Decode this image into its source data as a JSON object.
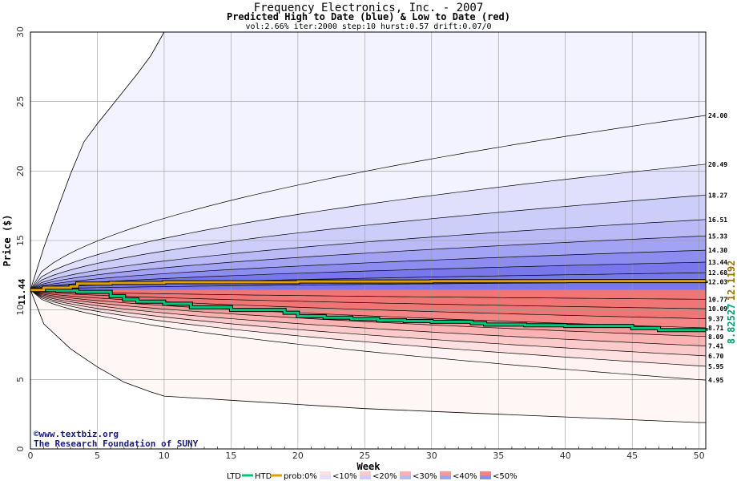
{
  "chart_data": {
    "type": "area",
    "title": "Frequency Electronics, Inc. - 2007",
    "subtitle": "Predicted High to Date (blue) &  Low to Date (red)",
    "params": "vol:2.66% iter:2000 step:10 hurst:0.57 drift:0.07/0",
    "xlabel": "Week",
    "ylabel": "Price ($)",
    "xlim": [
      0,
      50.5
    ],
    "ylim": [
      0,
      30
    ],
    "xticks": [
      0,
      5,
      10,
      15,
      20,
      25,
      30,
      35,
      40,
      45,
      50
    ],
    "yticks": [
      0,
      5,
      10,
      15,
      20,
      25,
      30
    ],
    "grid": true,
    "start_value": 11.44,
    "start_label": "11.44",
    "high_bands_end": [
      24.0,
      20.49,
      18.27,
      16.51,
      15.33,
      14.3,
      13.44,
      12.68,
      12.03
    ],
    "low_bands_end": [
      10.77,
      10.09,
      9.37,
      8.71,
      8.09,
      7.41,
      6.7,
      5.95,
      4.95
    ],
    "end_labels": [
      "24.00",
      "20.49",
      "18.27",
      "16.51",
      "15.33",
      "14.30",
      "13.44",
      "12.68",
      "12.03",
      "10.77",
      "10.09",
      "9.37",
      "8.71",
      "8.09",
      "7.41",
      "6.70",
      "5.95",
      "4.95"
    ],
    "outer_high": [
      [
        0,
        11.44
      ],
      [
        1,
        14.5
      ],
      [
        2,
        17.2
      ],
      [
        3,
        19.8
      ],
      [
        4,
        22.1
      ],
      [
        5,
        23.4
      ],
      [
        6,
        24.6
      ],
      [
        7,
        25.8
      ],
      [
        8,
        27.0
      ],
      [
        9,
        28.3
      ],
      [
        10,
        30.0
      ]
    ],
    "outer_low": [
      [
        0,
        11.44
      ],
      [
        1,
        9.0
      ],
      [
        3,
        7.2
      ],
      [
        5,
        5.9
      ],
      [
        7,
        4.8
      ],
      [
        9,
        4.1
      ],
      [
        10,
        3.8
      ],
      [
        15,
        3.5
      ],
      [
        20,
        3.2
      ],
      [
        25,
        2.9
      ],
      [
        30,
        2.7
      ],
      [
        35,
        2.5
      ],
      [
        40,
        2.3
      ],
      [
        45,
        2.1
      ],
      [
        50,
        1.9
      ],
      [
        50.5,
        1.9
      ]
    ],
    "series": [
      {
        "name": "LTD",
        "color": "#00c87a",
        "points": [
          [
            0,
            11.44
          ],
          [
            2,
            11.4
          ],
          [
            3.5,
            11.3
          ],
          [
            6,
            11.0
          ],
          [
            7,
            10.75
          ],
          [
            8,
            10.6
          ],
          [
            10,
            10.45
          ],
          [
            12,
            10.2
          ],
          [
            15,
            10.0
          ],
          [
            19,
            9.8
          ],
          [
            20,
            9.55
          ],
          [
            22,
            9.45
          ],
          [
            24,
            9.35
          ],
          [
            26,
            9.25
          ],
          [
            28,
            9.2
          ],
          [
            30,
            9.15
          ],
          [
            33,
            9.05
          ],
          [
            34,
            8.95
          ],
          [
            37,
            8.9
          ],
          [
            40,
            8.85
          ],
          [
            44,
            8.85
          ],
          [
            45,
            8.7
          ],
          [
            47,
            8.55
          ],
          [
            50.5,
            8.5
          ]
        ]
      },
      {
        "name": "HTD",
        "color": "#e0a000",
        "points": [
          [
            0,
            11.44
          ],
          [
            1,
            11.6
          ],
          [
            3,
            11.7
          ],
          [
            3.5,
            11.9
          ],
          [
            6,
            11.95
          ],
          [
            10,
            12.0
          ],
          [
            20,
            12.05
          ],
          [
            30,
            12.07
          ],
          [
            40,
            12.08
          ],
          [
            50.5,
            12.1
          ]
        ]
      }
    ],
    "current_high_label": "12.1192",
    "current_low_label": "8.82527",
    "legend": {
      "ltd_label": "LTD",
      "htd_label": "HTD",
      "prob_label": "prob:0%",
      "bins": [
        "<10%",
        "<20%",
        "<30%",
        "<40%",
        "<50%"
      ]
    },
    "colors": {
      "high_fills": [
        "#f3f3ff",
        "#e0e0fc",
        "#cdcdfa",
        "#babaf7",
        "#a3a3f4",
        "#8d8df0",
        "#7878ec"
      ],
      "low_fills": [
        "#fff3f3",
        "#fde0e0",
        "#fbcaca",
        "#f9b3b3",
        "#f69b9b",
        "#f48585",
        "#f27575"
      ],
      "outer_high": "#f3f3ff",
      "outer_low": "#fff6f6",
      "high_label": "#9c7000",
      "low_label": "#00a070"
    }
  },
  "credit": {
    "line1": "©www.textbiz.org",
    "line2": "The Research Foundation of SUNY"
  }
}
